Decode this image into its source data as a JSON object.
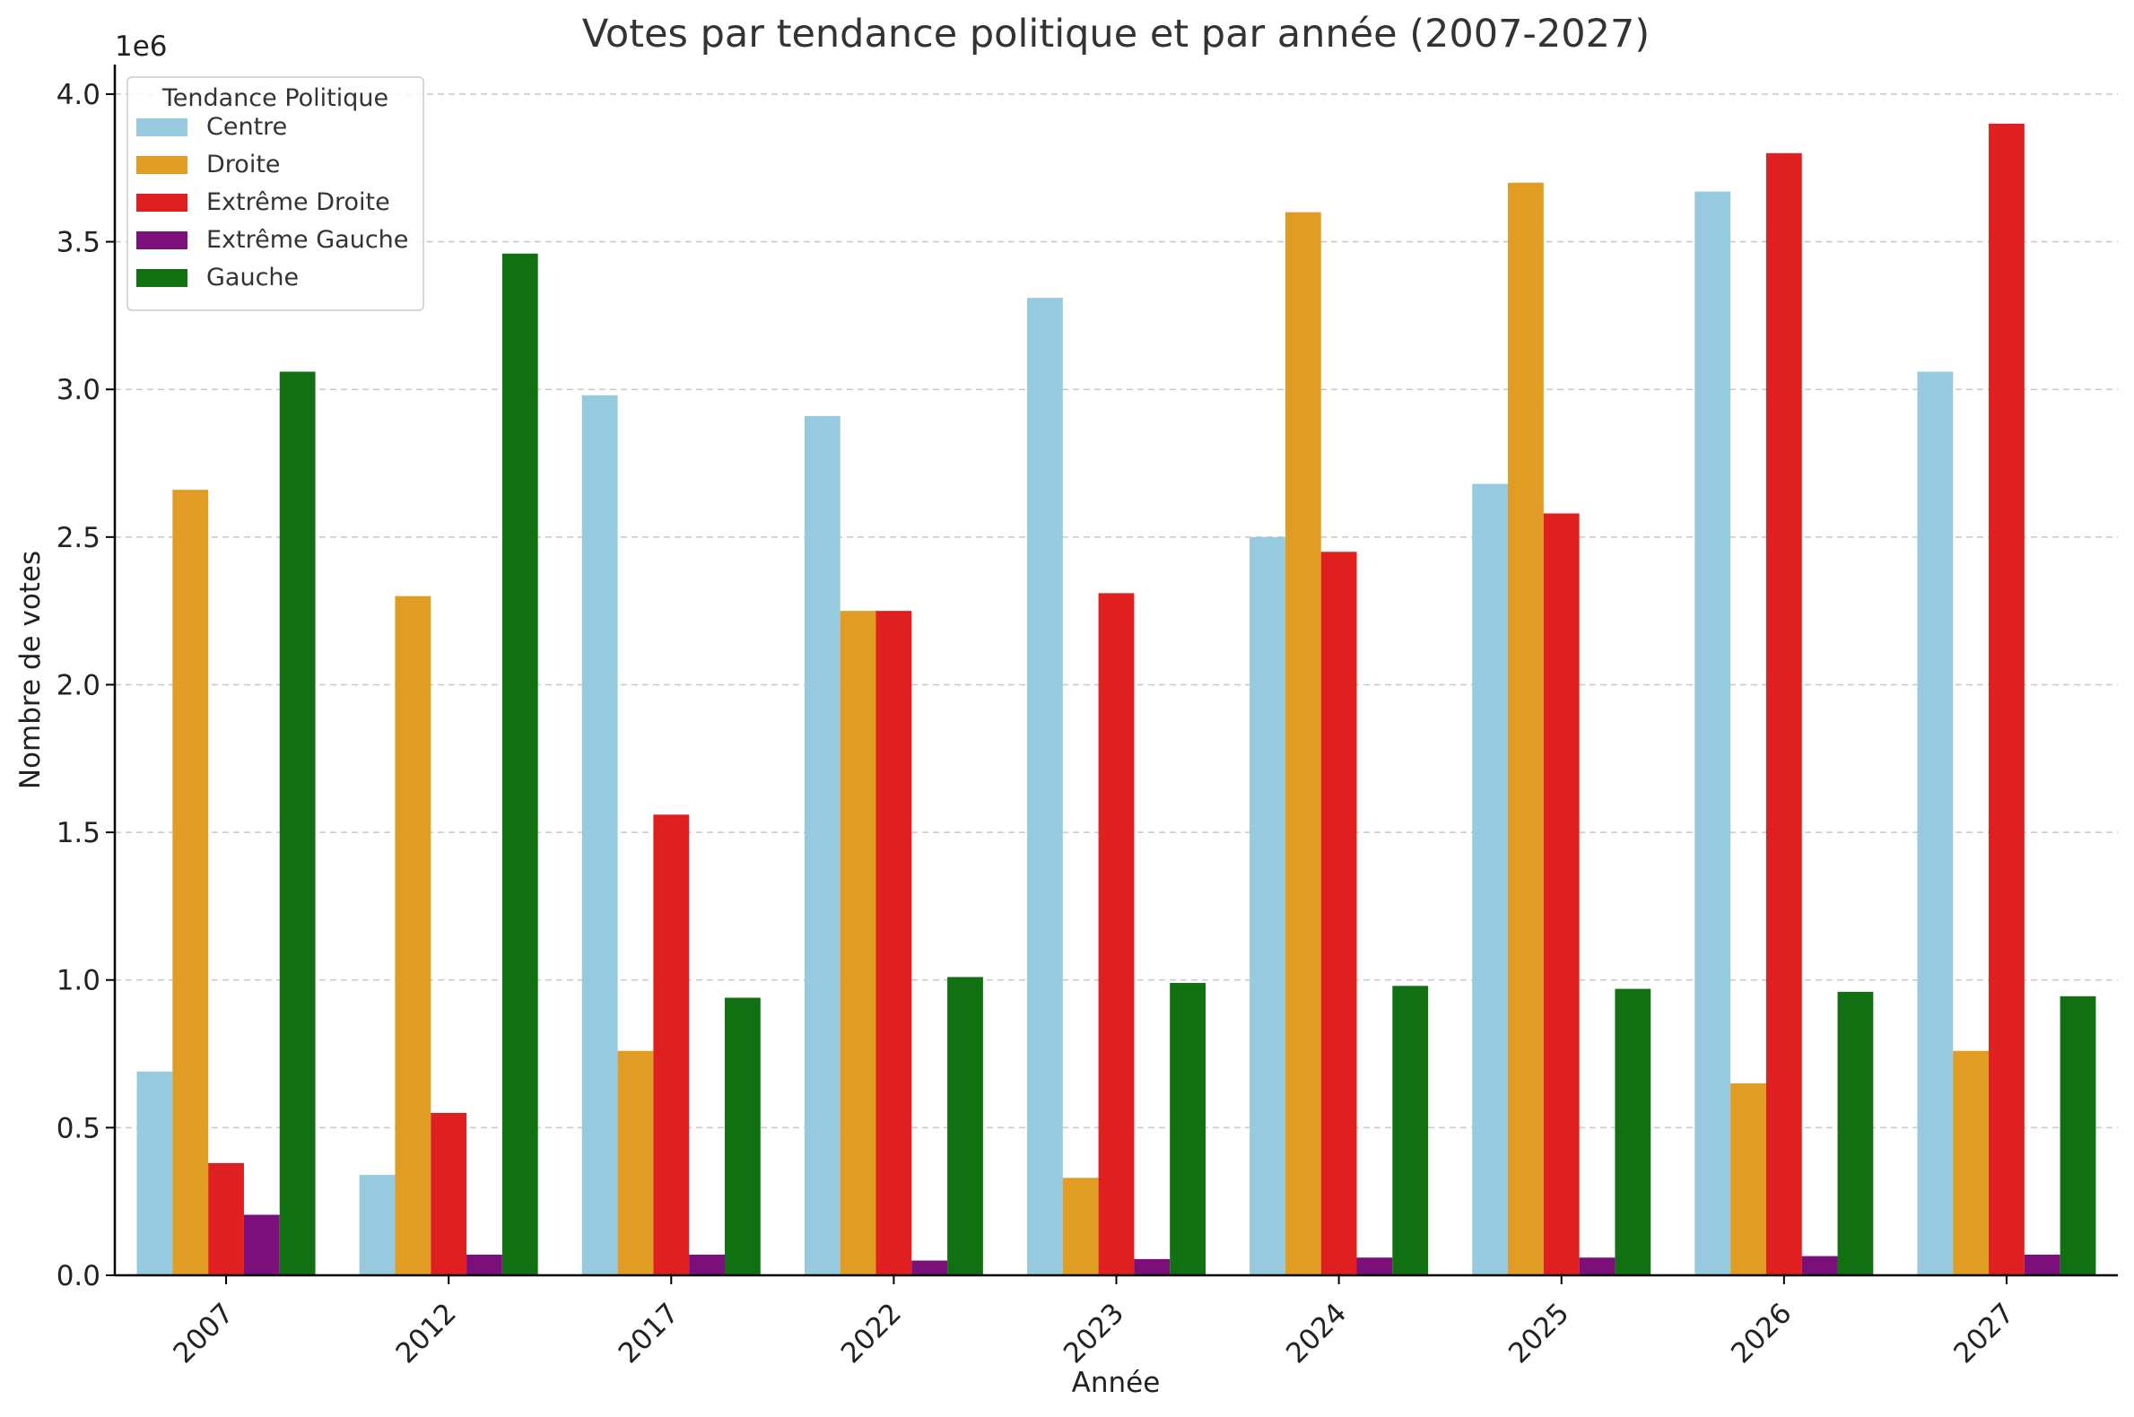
{
  "chart_data": {
    "type": "bar",
    "title": "Votes par tendance politique et par année (2007-2027)",
    "xlabel": "Année",
    "ylabel": "Nombre de votes",
    "y_offset_label": "1e6",
    "ylim": [
      0,
      4100000
    ],
    "yticks": [
      0,
      500000,
      1000000,
      1500000,
      2000000,
      2500000,
      3000000,
      3500000,
      4000000
    ],
    "ytick_labels": [
      "0.0",
      "0.5",
      "1.0",
      "1.5",
      "2.0",
      "2.5",
      "3.0",
      "3.5",
      "4.0"
    ],
    "grid": "horizontal dashed",
    "legend_title": "Tendance Politique",
    "legend_position": "top-left",
    "categories": [
      "2007",
      "2012",
      "2017",
      "2022",
      "2023",
      "2024",
      "2025",
      "2026",
      "2027"
    ],
    "series": [
      {
        "name": "Centre",
        "color": "#97c9df",
        "values": [
          690000,
          340000,
          2980000,
          2910000,
          3310000,
          2500000,
          2680000,
          3670000,
          3060000
        ]
      },
      {
        "name": "Droite",
        "color": "#e09c23",
        "values": [
          2660000,
          2300000,
          760000,
          2250000,
          330000,
          3600000,
          3700000,
          650000,
          760000
        ]
      },
      {
        "name": "Extrême Droite",
        "color": "#e02020",
        "values": [
          380000,
          550000,
          1560000,
          2250000,
          2310000,
          2450000,
          2580000,
          3800000,
          3900000
        ]
      },
      {
        "name": "Extrême Gauche",
        "color": "#7b107b",
        "values": [
          205000,
          70000,
          70000,
          50000,
          55000,
          60000,
          60000,
          65000,
          70000
        ]
      },
      {
        "name": "Gauche",
        "color": "#117011",
        "values": [
          3060000,
          3460000,
          940000,
          1010000,
          990000,
          980000,
          970000,
          960000,
          945000
        ]
      }
    ]
  }
}
